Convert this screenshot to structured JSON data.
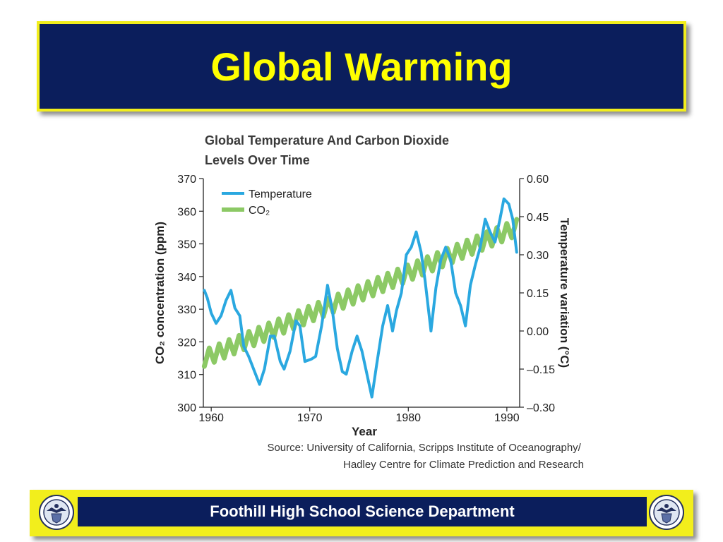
{
  "slide": {
    "title": "Global Warming",
    "footer": "Foothill High School Science Department"
  },
  "colors": {
    "banner_bg": "#0b1e5c",
    "banner_border": "#f2ee1c",
    "title_text": "#ffff00",
    "temperature_line": "#2aa8e0",
    "co2_line": "#8cc965"
  },
  "icons": {
    "seal": "school-seal-icon"
  },
  "chart_data": {
    "type": "line",
    "title": "Global Temperature And Carbon Dioxide Levels Over Time",
    "xlabel": "Year",
    "ylabel_left": "CO₂ concentration (ppm)",
    "ylabel_right": "Temperature variation (°C)",
    "xlim": [
      1959.2,
      1991.3
    ],
    "ylim_left": [
      300,
      370
    ],
    "ylim_right": [
      -0.3,
      0.6
    ],
    "x_ticks": [
      1960,
      1970,
      1980,
      1990
    ],
    "y_ticks_left": [
      "300",
      "310",
      "320",
      "330",
      "340",
      "350",
      "360",
      "370"
    ],
    "y_ticks_right": [
      "0.60",
      "0.45",
      "0.30",
      "0.15",
      "0.00",
      "–0.15",
      "–0.30"
    ],
    "legend": {
      "placement": "top-left",
      "entries": [
        "Temperature",
        "CO₂"
      ]
    },
    "grid": false,
    "source": "Source: University of California, Scripps Institute of Oceanography/ Hadley Centre for Climate Prediction and Research",
    "series": [
      {
        "name": "Temperature",
        "axis": "right",
        "points": [
          [
            1959.3,
            0.16
          ],
          [
            1959.6,
            0.13
          ],
          [
            1960.0,
            0.07
          ],
          [
            1960.5,
            0.03
          ],
          [
            1961.0,
            0.06
          ],
          [
            1961.5,
            0.12
          ],
          [
            1962.0,
            0.16
          ],
          [
            1962.4,
            0.09
          ],
          [
            1962.9,
            0.06
          ],
          [
            1963.3,
            -0.06
          ],
          [
            1963.8,
            -0.1
          ],
          [
            1964.4,
            -0.16
          ],
          [
            1964.9,
            -0.21
          ],
          [
            1965.4,
            -0.15
          ],
          [
            1966.0,
            -0.02
          ],
          [
            1966.4,
            -0.02
          ],
          [
            1967.0,
            -0.12
          ],
          [
            1967.4,
            -0.15
          ],
          [
            1968.0,
            -0.08
          ],
          [
            1968.6,
            0.04
          ],
          [
            1969.0,
            0.02
          ],
          [
            1969.5,
            -0.12
          ],
          [
            1970.2,
            -0.11
          ],
          [
            1970.6,
            -0.1
          ],
          [
            1971.2,
            0.02
          ],
          [
            1971.8,
            0.18
          ],
          [
            1972.3,
            0.08
          ],
          [
            1972.8,
            -0.07
          ],
          [
            1973.3,
            -0.16
          ],
          [
            1973.7,
            -0.17
          ],
          [
            1974.3,
            -0.08
          ],
          [
            1974.8,
            -0.02
          ],
          [
            1975.3,
            -0.08
          ],
          [
            1975.8,
            -0.17
          ],
          [
            1976.3,
            -0.26
          ],
          [
            1976.8,
            -0.13
          ],
          [
            1977.4,
            0.02
          ],
          [
            1977.9,
            0.1
          ],
          [
            1978.4,
            0.0
          ],
          [
            1978.8,
            0.08
          ],
          [
            1979.3,
            0.15
          ],
          [
            1979.8,
            0.3
          ],
          [
            1980.3,
            0.33
          ],
          [
            1980.8,
            0.39
          ],
          [
            1981.3,
            0.31
          ],
          [
            1981.7,
            0.2
          ],
          [
            1982.3,
            0.0
          ],
          [
            1982.8,
            0.17
          ],
          [
            1983.3,
            0.28
          ],
          [
            1983.8,
            0.33
          ],
          [
            1984.3,
            0.28
          ],
          [
            1984.8,
            0.15
          ],
          [
            1985.3,
            0.1
          ],
          [
            1985.8,
            0.02
          ],
          [
            1986.3,
            0.18
          ],
          [
            1986.8,
            0.26
          ],
          [
            1987.3,
            0.33
          ],
          [
            1987.8,
            0.44
          ],
          [
            1988.3,
            0.39
          ],
          [
            1988.8,
            0.35
          ],
          [
            1989.3,
            0.44
          ],
          [
            1989.7,
            0.52
          ],
          [
            1990.2,
            0.5
          ],
          [
            1990.6,
            0.44
          ],
          [
            1991.0,
            0.31
          ]
        ]
      },
      {
        "name": "CO₂",
        "axis": "left",
        "x_range": [
          1959.3,
          1991.0
        ],
        "trend": [
          315,
          355
        ],
        "seasonal_amplitude": 2.5
      }
    ]
  }
}
